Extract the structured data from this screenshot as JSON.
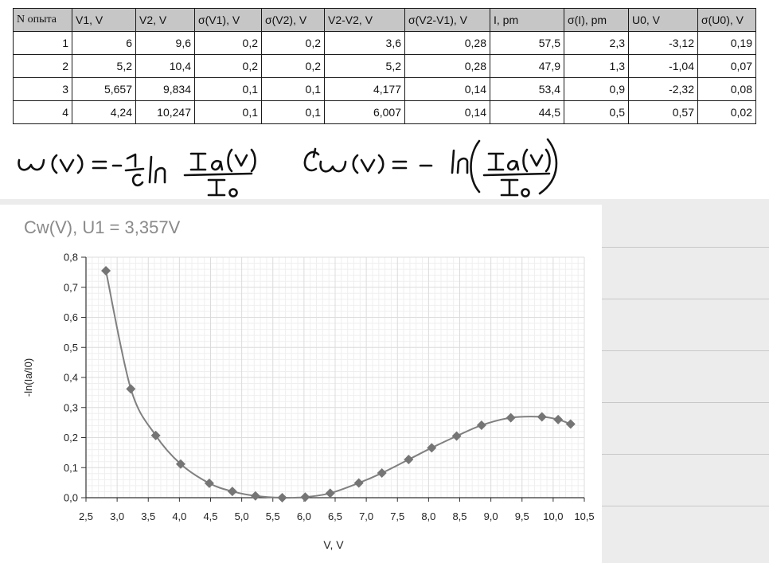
{
  "table": {
    "headers": [
      "N опыта",
      "V1, V",
      "V2, V",
      "σ(V1), V",
      "σ(V2), V",
      "V2-V2, V",
      "σ(V2-V1), V",
      "I, pm",
      "σ(I), pm",
      "U0, V",
      "σ(U0), V"
    ],
    "rows": [
      [
        "1",
        "6",
        "9,6",
        "0,2",
        "0,2",
        "3,6",
        "0,28",
        "57,5",
        "2,3",
        "-3,12",
        "0,19"
      ],
      [
        "2",
        "5,2",
        "10,4",
        "0,2",
        "0,2",
        "5,2",
        "0,28",
        "47,9",
        "1,3",
        "-1,04",
        "0,07"
      ],
      [
        "3",
        "5,657",
        "9,834",
        "0,1",
        "0,1",
        "4,177",
        "0,14",
        "53,4",
        "0,9",
        "-2,32",
        "0,08"
      ],
      [
        "4",
        "4,24",
        "10,247",
        "0,1",
        "0,1",
        "6,007",
        "0,14",
        "44,5",
        "0,5",
        "0,57",
        "0,02"
      ]
    ]
  },
  "formulas": {
    "left": "ω(v) = -(1/C) ln (Ia(v) / I0)",
    "right": "C ω(v) = -ln(Ia(v) / I0)"
  },
  "chart_data": {
    "type": "line",
    "title": "Cw(V), U1 = 3,357V",
    "xlabel": "V, V",
    "ylabel": "-ln(Ia/I0)",
    "xlim": [
      2.5,
      10.5
    ],
    "ylim": [
      0,
      0.8
    ],
    "x_ticks": [
      "2,5",
      "3,0",
      "3,5",
      "4,0",
      "4,5",
      "5,0",
      "5,5",
      "6,0",
      "6,5",
      "7,0",
      "7,5",
      "8,0",
      "8,5",
      "9,0",
      "9,5",
      "10,0",
      "10,5"
    ],
    "y_ticks": [
      "0,0",
      "0,1",
      "0,2",
      "0,3",
      "0,4",
      "0,5",
      "0,6",
      "0,7",
      "0,8"
    ],
    "grid": true,
    "marker": "diamond",
    "series": [
      {
        "x": [
          2.82,
          3.22,
          3.62,
          4.02,
          4.48,
          4.85,
          5.22,
          5.65,
          6.02,
          6.42,
          6.88,
          7.25,
          7.68,
          8.05,
          8.45,
          8.85,
          9.32,
          9.82,
          10.08,
          10.28
        ],
        "y": [
          0.755,
          0.362,
          0.207,
          0.112,
          0.048,
          0.021,
          0.006,
          0.0,
          0.002,
          0.015,
          0.049,
          0.082,
          0.127,
          0.166,
          0.205,
          0.241,
          0.266,
          0.269,
          0.26,
          0.245
        ]
      }
    ]
  },
  "colors": {
    "marker": "#757575",
    "line": "#808080",
    "grid": "#dcdcdc",
    "title": "#8a8a8a",
    "table_header": "#c6c6c6"
  }
}
